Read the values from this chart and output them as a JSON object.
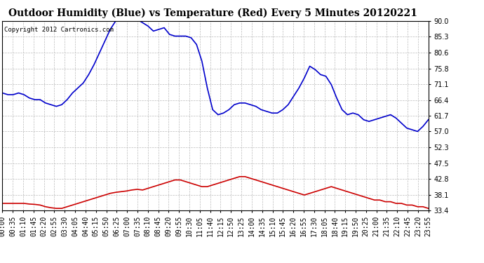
{
  "title": "Outdoor Humidity (Blue) vs Temperature (Red) Every 5 Minutes 20120221",
  "copyright": "Copyright 2012 Cartronics.com",
  "y_ticks": [
    33.4,
    38.1,
    42.8,
    47.5,
    52.3,
    57.0,
    61.7,
    66.4,
    71.1,
    75.8,
    80.6,
    85.3,
    90.0
  ],
  "ylim": [
    33.4,
    90.0
  ],
  "x_labels": [
    "00:00",
    "00:35",
    "01:10",
    "01:45",
    "02:20",
    "02:55",
    "03:30",
    "04:05",
    "04:40",
    "05:15",
    "05:50",
    "06:25",
    "07:00",
    "07:35",
    "08:10",
    "08:45",
    "09:20",
    "09:55",
    "10:30",
    "11:05",
    "11:40",
    "12:15",
    "12:50",
    "13:25",
    "14:00",
    "14:35",
    "15:10",
    "15:45",
    "16:20",
    "16:55",
    "17:30",
    "18:05",
    "18:40",
    "19:15",
    "19:50",
    "20:25",
    "21:00",
    "21:35",
    "22:10",
    "22:45",
    "23:20",
    "23:55"
  ],
  "humidity_values": [
    68.5,
    68.0,
    68.0,
    68.5,
    68.0,
    67.0,
    66.5,
    66.5,
    65.5,
    65.0,
    64.5,
    65.0,
    66.5,
    68.5,
    70.0,
    71.5,
    74.0,
    77.0,
    80.5,
    84.0,
    87.5,
    90.0,
    91.5,
    91.0,
    90.5,
    90.5,
    89.5,
    88.5,
    87.0,
    87.5,
    88.0,
    86.0,
    85.5,
    85.5,
    85.5,
    85.0,
    83.0,
    78.0,
    70.0,
    63.5,
    62.0,
    62.5,
    63.5,
    65.0,
    65.5,
    65.5,
    65.0,
    64.5,
    63.5,
    63.0,
    62.5,
    62.5,
    63.5,
    65.0,
    67.5,
    70.0,
    73.0,
    76.5,
    75.5,
    74.0,
    73.5,
    71.0,
    67.0,
    63.5,
    62.0,
    62.5,
    62.0,
    60.5,
    60.0,
    60.5,
    61.0,
    61.5,
    62.0,
    61.0,
    59.5,
    58.0,
    57.5,
    57.0,
    58.5,
    60.5
  ],
  "temperature_values": [
    35.5,
    35.5,
    35.5,
    35.5,
    35.5,
    35.3,
    35.2,
    35.0,
    34.5,
    34.2,
    34.0,
    34.0,
    34.5,
    35.0,
    35.5,
    36.0,
    36.5,
    37.0,
    37.5,
    38.0,
    38.5,
    38.8,
    39.0,
    39.2,
    39.5,
    39.7,
    39.5,
    40.0,
    40.5,
    41.0,
    41.5,
    42.0,
    42.5,
    42.5,
    42.0,
    41.5,
    41.0,
    40.5,
    40.5,
    41.0,
    41.5,
    42.0,
    42.5,
    43.0,
    43.5,
    43.5,
    43.0,
    42.5,
    42.0,
    41.5,
    41.0,
    40.5,
    40.0,
    39.5,
    39.0,
    38.5,
    38.0,
    38.5,
    39.0,
    39.5,
    40.0,
    40.5,
    40.0,
    39.5,
    39.0,
    38.5,
    38.0,
    37.5,
    37.0,
    36.5,
    36.5,
    36.0,
    36.0,
    35.5,
    35.5,
    35.0,
    35.0,
    34.5,
    34.5,
    34.0
  ],
  "blue_color": "#0000CC",
  "red_color": "#CC0000",
  "bg_color": "#FFFFFF",
  "plot_bg_color": "#FFFFFF",
  "grid_color": "#BBBBBB",
  "title_fontsize": 10,
  "tick_fontsize": 7,
  "copyright_fontsize": 6.5
}
